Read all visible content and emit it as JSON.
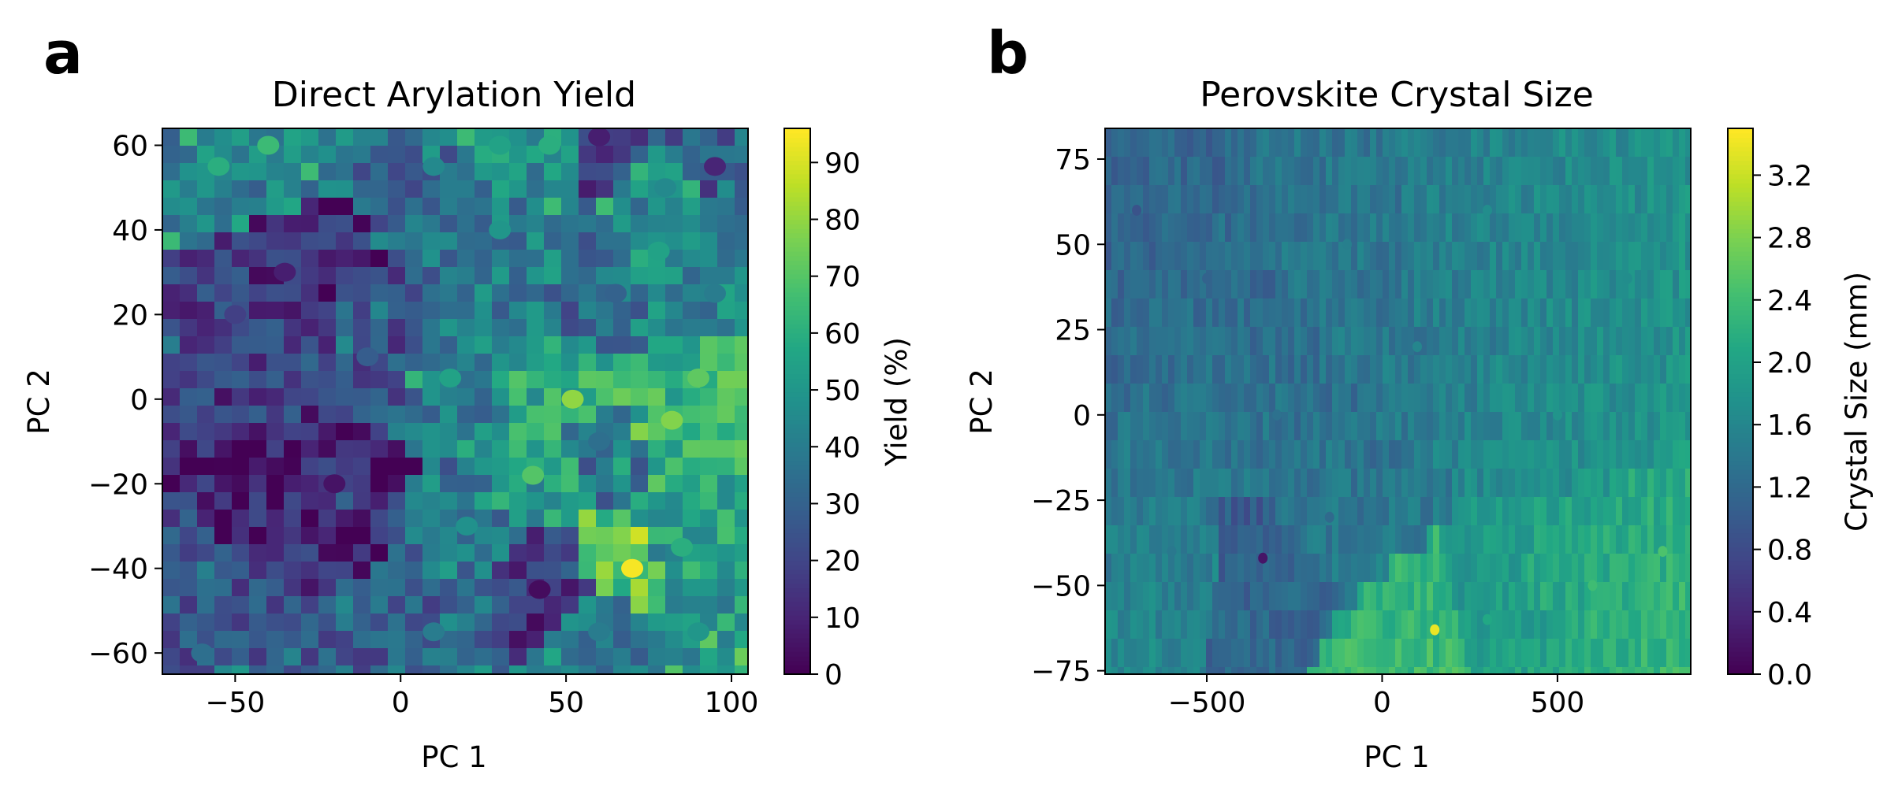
{
  "figure": {
    "panel_letters": [
      "a",
      "b"
    ]
  },
  "chart_data": [
    {
      "type": "heatmap",
      "panel": "a",
      "title": "Direct Arylation Yield",
      "xlabel": "PC 1",
      "ylabel": "PC 2",
      "xlim": [
        -72,
        105
      ],
      "ylim": [
        -65,
        64
      ],
      "xticks": [
        -50,
        0,
        50,
        100
      ],
      "xtick_labels": [
        "−50",
        "0",
        "50",
        "100"
      ],
      "yticks": [
        -60,
        -40,
        -20,
        0,
        20,
        40,
        60
      ],
      "ytick_labels": [
        "−60",
        "−40",
        "−20",
        "0",
        "20",
        "40",
        "60"
      ],
      "colormap": "viridis",
      "colorbar": {
        "label": "Yield (%)",
        "range": [
          0,
          96
        ],
        "ticks": [
          0,
          10,
          20,
          30,
          40,
          50,
          60,
          70,
          80,
          90
        ],
        "tick_labels": [
          "0",
          "10",
          "20",
          "30",
          "40",
          "50",
          "60",
          "70",
          "80",
          "90"
        ]
      },
      "regions": [
        {
          "x": -55,
          "y": 55,
          "value": 60
        },
        {
          "x": -40,
          "y": 60,
          "value": 65
        },
        {
          "x": 10,
          "y": 55,
          "value": 45
        },
        {
          "x": 30,
          "y": 60,
          "value": 55
        },
        {
          "x": 45,
          "y": 60,
          "value": 60
        },
        {
          "x": 80,
          "y": 50,
          "value": 45
        },
        {
          "x": 95,
          "y": 55,
          "value": 10
        },
        {
          "x": 60,
          "y": 62,
          "value": 8
        },
        {
          "x": 78,
          "y": 35,
          "value": 55
        },
        {
          "x": 95,
          "y": 25,
          "value": 40
        },
        {
          "x": 65,
          "y": 25,
          "value": 30
        },
        {
          "x": 90,
          "y": 5,
          "value": 72
        },
        {
          "x": 52,
          "y": 0,
          "value": 80
        },
        {
          "x": 82,
          "y": -5,
          "value": 78
        },
        {
          "x": 40,
          "y": -18,
          "value": 70
        },
        {
          "x": 70,
          "y": -40,
          "value": 95
        },
        {
          "x": 85,
          "y": -35,
          "value": 60
        },
        {
          "x": 90,
          "y": -55,
          "value": 50
        },
        {
          "x": 60,
          "y": -55,
          "value": 40
        },
        {
          "x": 42,
          "y": -45,
          "value": 3
        },
        {
          "x": -20,
          "y": -20,
          "value": 5
        },
        {
          "x": -35,
          "y": 30,
          "value": 8
        },
        {
          "x": -60,
          "y": -60,
          "value": 35
        },
        {
          "x": 10,
          "y": -55,
          "value": 40
        },
        {
          "x": 20,
          "y": -30,
          "value": 48
        },
        {
          "x": -10,
          "y": 10,
          "value": 28
        },
        {
          "x": 15,
          "y": 5,
          "value": 55
        },
        {
          "x": 30,
          "y": 40,
          "value": 50
        },
        {
          "x": -50,
          "y": 20,
          "value": 18
        },
        {
          "x": 60,
          "y": -10,
          "value": 35
        }
      ]
    },
    {
      "type": "heatmap",
      "panel": "b",
      "title": "Perovskite Crystal Size",
      "xlabel": "PC 1",
      "ylabel": "PC 2",
      "xlim": [
        -790,
        880
      ],
      "ylim": [
        -76,
        84
      ],
      "xticks": [
        -500,
        0,
        500
      ],
      "xtick_labels": [
        "−500",
        "0",
        "500"
      ],
      "yticks": [
        -75,
        -50,
        -25,
        0,
        25,
        50,
        75
      ],
      "ytick_labels": [
        "−75",
        "−50",
        "−25",
        "0",
        "25",
        "50",
        "75"
      ],
      "colormap": "viridis",
      "colorbar": {
        "label": "Crystal Size (mm)",
        "range": [
          0.0,
          3.5
        ],
        "ticks": [
          0.0,
          0.4,
          0.8,
          1.2,
          1.6,
          2.0,
          2.4,
          2.8,
          3.2
        ],
        "tick_labels": [
          "0.0",
          "0.4",
          "0.8",
          "1.2",
          "1.6",
          "2.0",
          "2.4",
          "2.8",
          "3.2"
        ]
      },
      "regions": [
        {
          "x": -700,
          "y": 60,
          "value": 0.9
        },
        {
          "x": -500,
          "y": 40,
          "value": 1.1
        },
        {
          "x": -300,
          "y": 0,
          "value": 1.3
        },
        {
          "x": -100,
          "y": 50,
          "value": 1.5
        },
        {
          "x": 100,
          "y": 20,
          "value": 1.6
        },
        {
          "x": 300,
          "y": 60,
          "value": 1.7
        },
        {
          "x": 500,
          "y": 0,
          "value": 1.8
        },
        {
          "x": 700,
          "y": 40,
          "value": 1.7
        },
        {
          "x": 600,
          "y": -50,
          "value": 2.4
        },
        {
          "x": 800,
          "y": -40,
          "value": 2.5
        },
        {
          "x": 300,
          "y": -60,
          "value": 2.1
        },
        {
          "x": 150,
          "y": -63,
          "value": 3.4
        },
        {
          "x": -340,
          "y": -42,
          "value": 0.2
        },
        {
          "x": -600,
          "y": -40,
          "value": 1.4
        },
        {
          "x": -150,
          "y": -30,
          "value": 1.2
        }
      ]
    }
  ]
}
